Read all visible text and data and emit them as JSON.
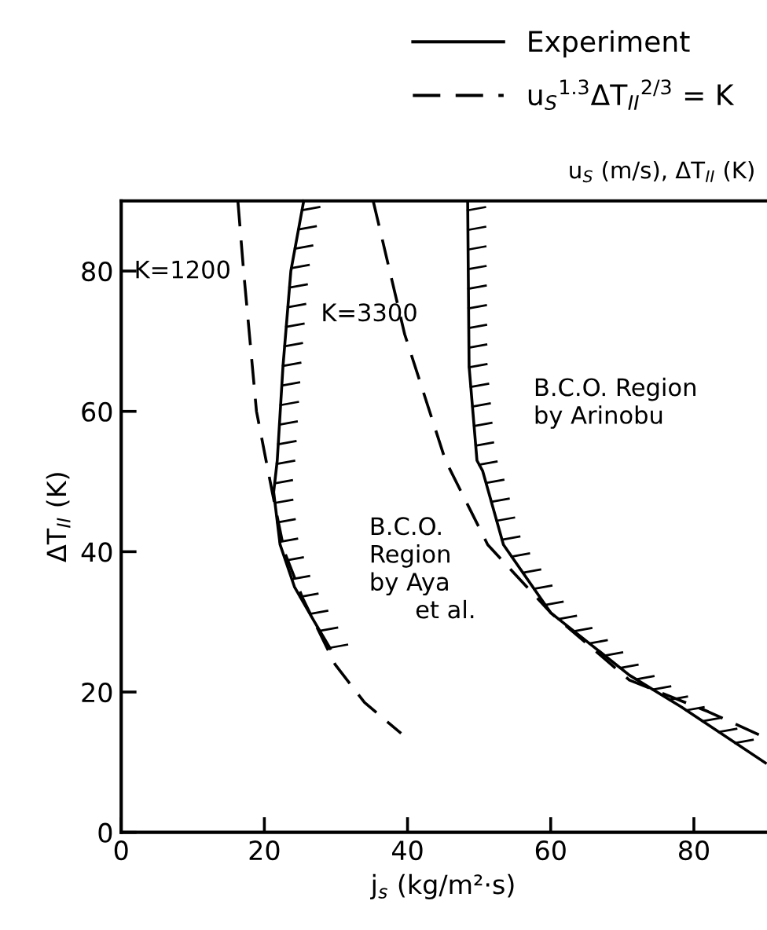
{
  "chart_data": {
    "type": "line",
    "xlabel": "j$_{s}$ (kg/m²·s)",
    "ylabel": "ΔT$_{II}$ (K)",
    "xlim": [
      0,
      90
    ],
    "ylim": [
      0,
      90
    ],
    "xticks": [
      0,
      20,
      40,
      60,
      80
    ],
    "yticks": [
      0,
      20,
      40,
      60,
      80
    ],
    "grid": false,
    "legend": "top right",
    "series": [
      {
        "name": "Experiment",
        "color": "#000000",
        "line_style": "solid",
        "x": [
          25.5,
          23.7,
          22.6,
          21.8,
          21.3,
          22.2,
          24.2,
          27,
          29.2
        ],
        "values": [
          90,
          80,
          66.4,
          53,
          48.5,
          41,
          35,
          30,
          26.2
        ]
      },
      {
        "color": "#000000",
        "line_style": "solid",
        "x": [
          48.4,
          48.6,
          49.7,
          50.5,
          53.4,
          60,
          71,
          78.2,
          90
        ],
        "values": [
          90,
          66.4,
          53,
          51.5,
          41,
          31.3,
          22.4,
          17.9,
          9.9
        ]
      },
      {
        "name": "u$_{S}$$^{1.3}$ΔT$_{II}$$^{2/3}$ = K",
        "color": "#000000",
        "line_style": "dashed",
        "x": [
          16.3,
          17.1,
          18.9,
          21.1,
          22.8,
          25.3,
          29.9,
          34,
          39.1
        ],
        "values": [
          90,
          80,
          60,
          48.5,
          40,
          33.5,
          23.9,
          18.5,
          14.1
        ]
      },
      {
        "color": "#000000",
        "line_style": "dashed",
        "x": [
          35.2,
          39.6,
          45.3,
          51.2,
          60,
          71,
          82,
          90
        ],
        "values": [
          90,
          71,
          53,
          41,
          31.3,
          21.7,
          17.2,
          13.5
        ]
      }
    ],
    "annotations": [
      "u$_{S}$ (m/s), ΔT$_{II}$ (K)",
      "K=1200",
      "K=3300",
      "B.C.O. Region\nby Arinobu",
      "B.C.O.\nRegion\nby Aya\n      et al."
    ]
  }
}
